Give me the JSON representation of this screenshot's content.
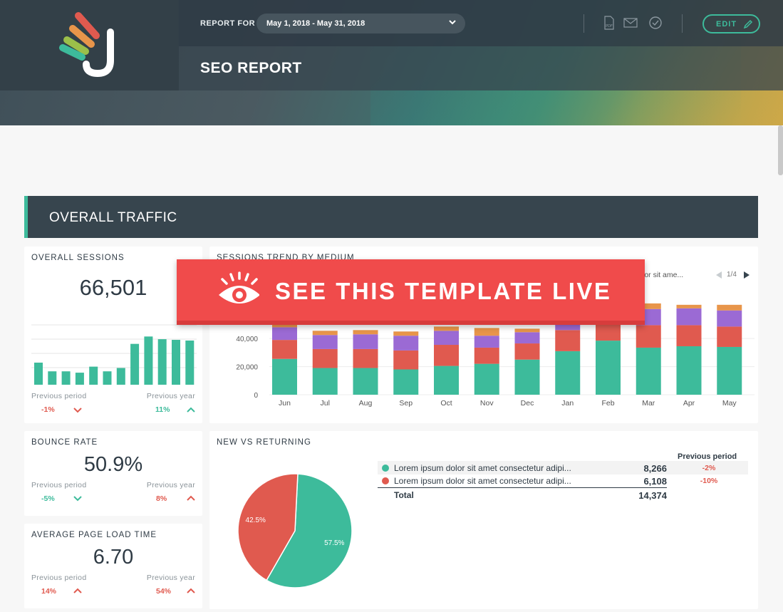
{
  "header": {
    "report_for_label": "REPORT FOR",
    "date_range": "May 1, 2018 - May 31, 2018",
    "edit_label": "EDIT",
    "page_title": "SEO REPORT",
    "icons": [
      "pdf-icon",
      "mail-icon",
      "check-circle-icon",
      "pencil-icon"
    ]
  },
  "section": {
    "title": "OVERALL TRAFFIC"
  },
  "overall_sessions": {
    "title": "OVERALL SESSIONS",
    "value": "66,501",
    "prev_period_label": "Previous period",
    "prev_period_value": "-1%",
    "prev_year_label": "Previous year",
    "prev_year_value": "11%",
    "sparkline": [
      0.33,
      0.2,
      0.2,
      0.18,
      0.27,
      0.2,
      0.25,
      0.61,
      0.72,
      0.68,
      0.67,
      0.66
    ]
  },
  "bounce_rate": {
    "title": "BOUNCE RATE",
    "value": "50.9%",
    "prev_period_label": "Previous period",
    "prev_period_value": "-5%",
    "prev_year_label": "Previous year",
    "prev_year_value": "8%"
  },
  "page_load": {
    "title": "AVERAGE PAGE LOAD TIME",
    "value": "6.70",
    "prev_period_label": "Previous period",
    "prev_period_value": "14%",
    "prev_year_label": "Previous year",
    "prev_year_value": "54%"
  },
  "trend": {
    "title": "SESSIONS TREND BY MEDIUM",
    "legend_text": "lor sit ame...",
    "pager": "1/4"
  },
  "new_vs_returning": {
    "title": "NEW VS RETURNING",
    "prev_period_header": "Previous period",
    "rows": [
      {
        "label": "Lorem ipsum dolor sit amet consectetur adipi...",
        "value": "8,266",
        "change": "-2%",
        "color": "#3dbb9b"
      },
      {
        "label": "Lorem ipsum dolor sit amet consectetur adipi...",
        "value": "6,108",
        "change": "-10%",
        "color": "#e05a4f"
      }
    ],
    "total_label": "Total",
    "total_value": "14,374"
  },
  "cta": {
    "label": "SEE THIS TEMPLATE LIVE"
  },
  "colors": {
    "teal": "#3dbb9b",
    "red": "#e05a4f",
    "purple": "#9b6ad4",
    "orange": "#e8954a",
    "navy": "#37454e"
  },
  "chart_data": [
    {
      "type": "bar",
      "title": "SESSIONS TREND BY MEDIUM",
      "categories": [
        "Jun",
        "Jul",
        "Aug",
        "Sep",
        "Oct",
        "Nov",
        "Dec",
        "Jan",
        "Feb",
        "Mar",
        "Apr",
        "May"
      ],
      "yticks": [
        "0",
        "20,000",
        "40,000"
      ],
      "ylim": [
        0,
        70000
      ],
      "stacked": true,
      "series": [
        {
          "color": "#3dbb9b",
          "values": [
            25500,
            19000,
            19000,
            18000,
            20500,
            22000,
            25000,
            31000,
            38500,
            33500,
            34500,
            34000
          ]
        },
        {
          "color": "#e05a4f",
          "values": [
            13500,
            13500,
            13500,
            13500,
            15000,
            11500,
            11500,
            15000,
            19000,
            16000,
            15000,
            14500
          ]
        },
        {
          "color": "#9b6ad4",
          "values": [
            9000,
            10000,
            10500,
            10500,
            10000,
            8500,
            8000,
            9000,
            9500,
            11500,
            12000,
            11500
          ]
        },
        {
          "color": "#e8954a",
          "values": [
            2000,
            3000,
            3000,
            3000,
            3000,
            5500,
            2500,
            2000,
            2000,
            4000,
            2500,
            4000
          ]
        }
      ]
    },
    {
      "type": "pie",
      "title": "NEW VS RETURNING",
      "slices": [
        {
          "label": "57.5%",
          "value": 57.5,
          "color": "#3dbb9b"
        },
        {
          "label": "42.5%",
          "value": 42.5,
          "color": "#e05a4f"
        }
      ]
    }
  ]
}
